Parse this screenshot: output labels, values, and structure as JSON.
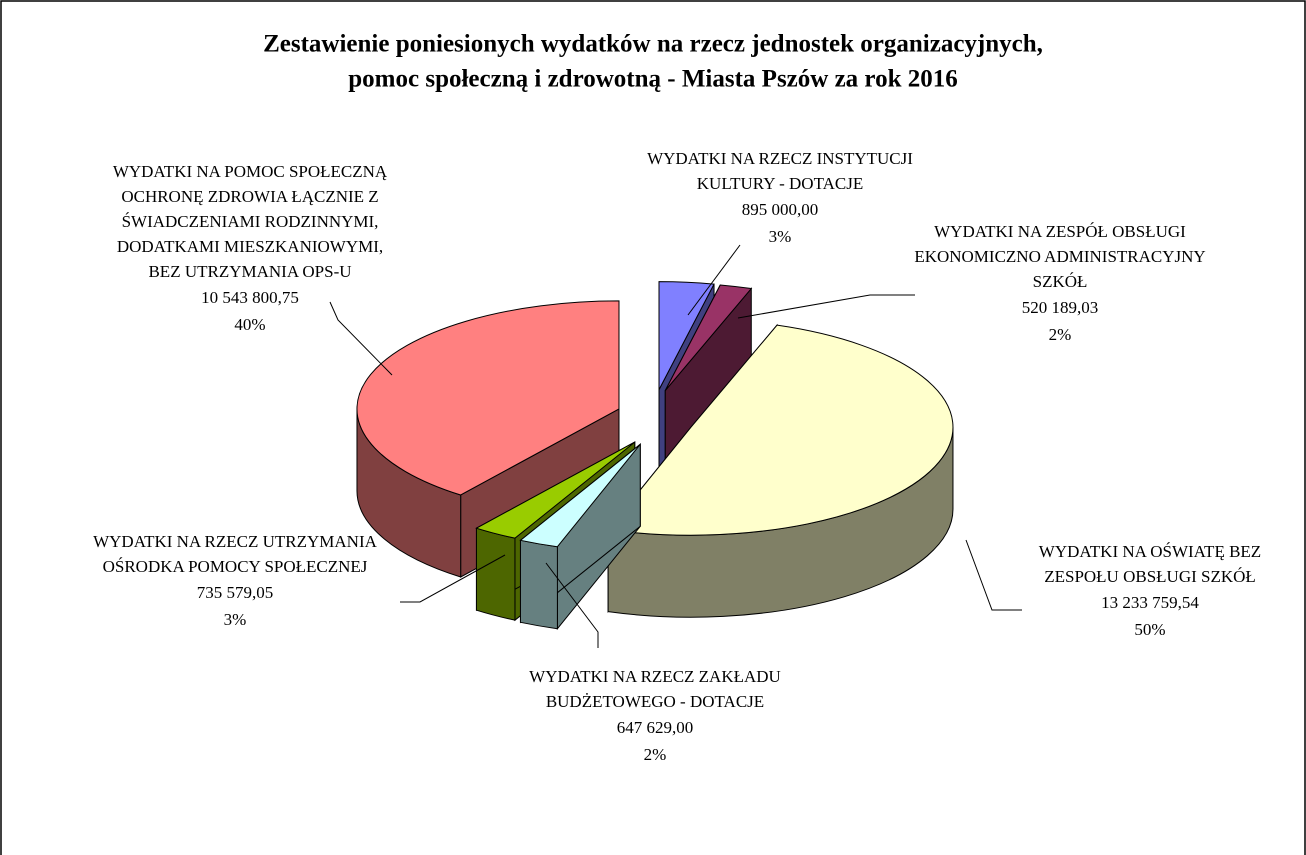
{
  "chart_data": {
    "type": "pie3d",
    "title": [
      "Zestawienie poniesionych wydatków na rzecz jednostek organizacyjnych,",
      "pomoc społeczną i zdrowotną - Miasta Pszów za rok 2016"
    ],
    "categories": [
      [
        "WYDATKI NA RZECZ INSTYTUCJI",
        "KULTURY - DOTACJE"
      ],
      [
        "WYDATKI NA ZESPÓŁ OBSŁUGI",
        "EKONOMICZNO ADMINISTRACYJNY",
        "SZKÓŁ"
      ],
      [
        "WYDATKI NA OŚWIATĘ BEZ",
        "ZESPOŁU OBSŁUGI SZKÓŁ"
      ],
      [
        "WYDATKI NA RZECZ ZAKŁADU",
        "BUDŻETOWEGO - DOTACJE"
      ],
      [
        "WYDATKI NA RZECZ UTRZYMANIA",
        "OŚRODKA POMOCY SPOŁECZNEJ"
      ],
      [
        "WYDATKI NA POMOC SPOŁECZNĄ",
        "OCHRONĘ ZDROWIA ŁĄCZNIE Z",
        "ŚWIADCZENIAMI RODZINNYMI,",
        "DODATKAMI MIESZKANIOWYMI,",
        "BEZ UTRZYMANIA OPS-U"
      ]
    ],
    "values": [
      895000.0,
      520189.03,
      13233759.54,
      647629.0,
      735579.05,
      10543800.75
    ],
    "value_labels": [
      "895 000,00",
      "520 189,03",
      "13 233 759,54",
      "647 629,00",
      "735 579,05",
      "10 543 800,75"
    ],
    "percent_labels": [
      "3%",
      "2%",
      "50%",
      "2%",
      "3%",
      "40%"
    ],
    "colors": [
      "#8080ff",
      "#993366",
      "#ffffcc",
      "#ccffff",
      "#99cc00",
      "#ff8080"
    ]
  }
}
